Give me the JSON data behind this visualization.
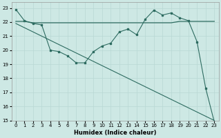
{
  "xlabel": "Humidex (Indice chaleur)",
  "bg_color": "#cde8e4",
  "grid_color": "#b8d8d4",
  "line_color": "#2d6b60",
  "xlim": [
    -0.5,
    23.5
  ],
  "ylim": [
    15,
    23.4
  ],
  "xticks": [
    0,
    1,
    2,
    3,
    4,
    5,
    6,
    7,
    8,
    9,
    10,
    11,
    12,
    13,
    14,
    15,
    16,
    17,
    18,
    19,
    20,
    21,
    22,
    23
  ],
  "yticks": [
    15,
    16,
    17,
    18,
    19,
    20,
    21,
    22,
    23
  ],
  "line1_x": [
    0,
    1,
    2,
    3,
    4,
    5,
    6,
    7,
    8,
    9,
    10,
    11,
    12,
    13,
    14,
    15,
    16,
    17,
    18,
    19,
    20,
    21,
    22,
    23
  ],
  "line1_y": [
    22.9,
    22.1,
    21.9,
    21.8,
    20.0,
    19.9,
    19.6,
    19.1,
    19.1,
    19.9,
    20.3,
    20.5,
    21.3,
    21.5,
    21.1,
    22.2,
    22.85,
    22.5,
    22.65,
    22.3,
    22.1,
    20.6,
    17.3,
    14.9
  ],
  "line2_x": [
    0,
    1,
    2,
    3,
    4,
    5,
    6,
    7,
    8,
    9,
    10,
    11,
    12,
    13,
    14,
    15,
    16,
    17,
    18,
    19,
    20,
    21,
    22,
    23
  ],
  "line2_y": [
    22.05,
    22.05,
    21.95,
    21.95,
    21.95,
    21.95,
    21.95,
    21.95,
    21.95,
    21.95,
    21.95,
    21.95,
    21.95,
    21.95,
    21.95,
    21.95,
    21.95,
    21.95,
    21.95,
    22.05,
    22.05,
    22.05,
    22.05,
    22.05
  ],
  "line3_x": [
    0,
    1,
    2,
    3,
    4,
    5,
    6,
    7,
    8,
    9,
    10,
    11,
    12,
    13,
    14,
    15,
    16,
    17,
    18,
    19,
    20,
    21,
    22,
    23
  ],
  "line3_y": [
    21.9,
    21.6,
    21.3,
    21.0,
    20.7,
    20.4,
    20.1,
    19.8,
    19.5,
    19.2,
    18.9,
    18.6,
    18.3,
    18.0,
    17.7,
    17.4,
    17.1,
    16.8,
    16.5,
    16.2,
    15.9,
    15.6,
    15.3,
    15.0
  ]
}
